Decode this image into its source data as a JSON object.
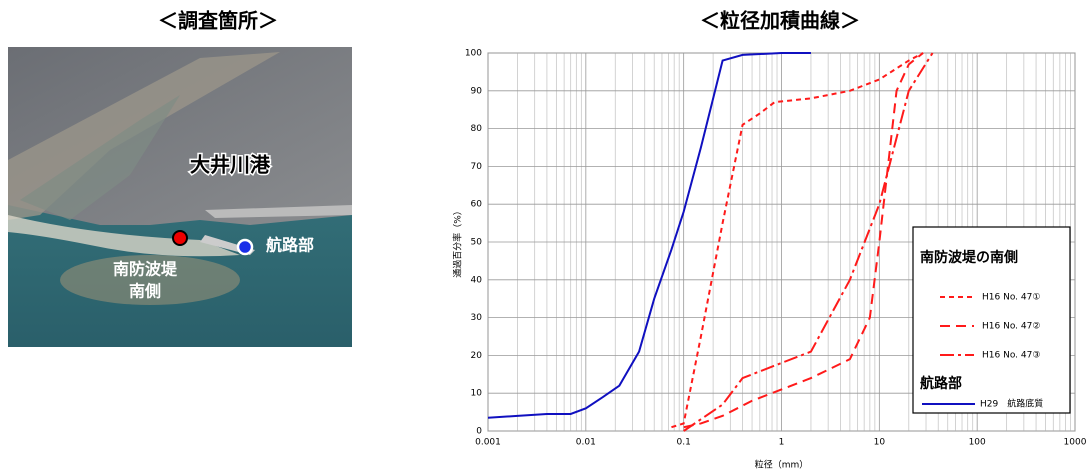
{
  "photo": {
    "title": "＜調査箇所＞",
    "port_label": "大井川港",
    "channel_label": "航路部",
    "breakwater_label": [
      "南防波堤",
      "南側"
    ]
  },
  "chart_data": {
    "type": "line",
    "title": "＜粒径加積曲線＞",
    "x_label": "粒径（mm）",
    "y_label": "通過百分率（%）",
    "x_scale": "log",
    "xlim": [
      0.001,
      1000
    ],
    "xticks": [
      0.001,
      0.01,
      0.1,
      1,
      10,
      100,
      1000
    ],
    "ylim": [
      0,
      100
    ],
    "yticks": [
      0,
      10,
      20,
      30,
      40,
      50,
      60,
      70,
      80,
      90,
      100
    ],
    "grid": true,
    "minor_grid": true,
    "legend_titles": [
      "南防波堤の南側",
      "航路部"
    ],
    "series": [
      {
        "name": "H16 No. 47①",
        "color": "#ff1a1a",
        "dash": "5,4",
        "x": [
          0.075,
          0.1,
          0.15,
          0.25,
          0.4,
          0.6,
          0.85,
          2,
          5,
          10,
          20,
          28
        ],
        "values": [
          1,
          2,
          25,
          55,
          81,
          84,
          87,
          88,
          90,
          93,
          98,
          100
        ]
      },
      {
        "name": "H16 No. 47②",
        "color": "#ff1a1a",
        "dash": "10,6",
        "x": [
          0.1,
          0.15,
          0.25,
          0.5,
          1,
          2,
          5,
          8,
          10,
          15,
          20,
          28
        ],
        "values": [
          1,
          2,
          4,
          8,
          11,
          14,
          19,
          30,
          50,
          90,
          97,
          100
        ]
      },
      {
        "name": "H16 No. 47③",
        "color": "#ff1a1a",
        "dash": "14,4,3,4",
        "x": [
          0.1,
          0.25,
          0.4,
          1,
          2,
          5,
          10,
          20,
          35
        ],
        "values": [
          0,
          7,
          14,
          18,
          21,
          40,
          60,
          90,
          100
        ]
      },
      {
        "name": "H29　航路底質",
        "color": "#1010c0",
        "dash": "",
        "x": [
          0.001,
          0.002,
          0.004,
          0.007,
          0.01,
          0.015,
          0.022,
          0.035,
          0.05,
          0.075,
          0.1,
          0.15,
          0.25,
          0.4,
          1,
          2
        ],
        "values": [
          3.5,
          4,
          4.5,
          4.5,
          6,
          9,
          12,
          21,
          35,
          48,
          58,
          75,
          98,
          99.5,
          100,
          100
        ]
      }
    ]
  }
}
